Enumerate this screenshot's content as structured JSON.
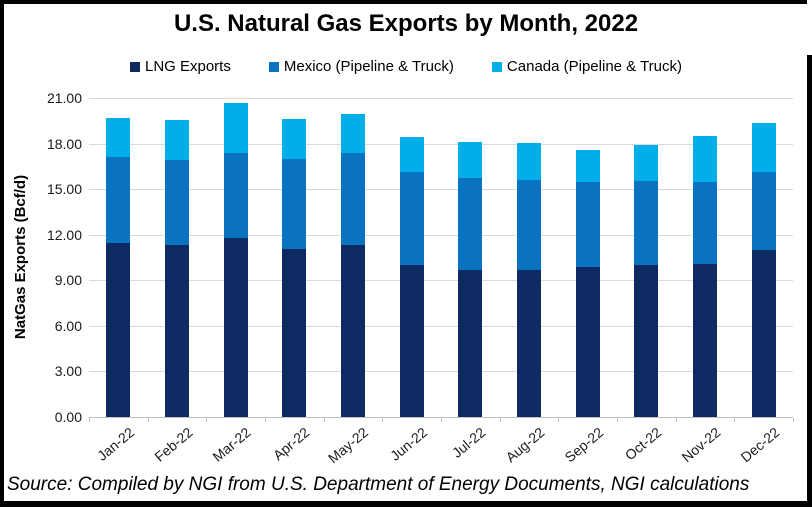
{
  "title": "U.S. Natural Gas Exports by Month, 2022",
  "source_note": "Source: Compiled by NGI from U.S. Department of Energy Documents, NGI calculations",
  "colors": {
    "lng_navy": "#0D2A63",
    "mexico_blue": "#0A73C0",
    "canada_lightblue": "#00AEE9",
    "gridline": "#d9d9d9",
    "axis": "#bfbfbf",
    "frame": "#000000"
  },
  "chart_data": {
    "type": "bar",
    "stacked": true,
    "title": "U.S. Natural Gas Exports by Month, 2022",
    "categories": [
      "Jan-22",
      "Feb-22",
      "Mar-22",
      "Apr-22",
      "May-22",
      "Jun-22",
      "Jul-22",
      "Aug-22",
      "Sep-22",
      "Oct-22",
      "Nov-22",
      "Dec-22"
    ],
    "series": [
      {
        "name": "LNG Exports",
        "color": "#0D2A63",
        "values": [
          11.45,
          11.3,
          11.8,
          11.05,
          11.3,
          10.0,
          9.65,
          9.7,
          9.85,
          10.0,
          10.1,
          11.0
        ]
      },
      {
        "name": "Mexico (Pipeline & Truck)",
        "color": "#0A73C0",
        "values": [
          5.65,
          5.65,
          5.55,
          5.95,
          6.1,
          6.1,
          6.1,
          5.9,
          5.65,
          5.55,
          5.4,
          5.15
        ]
      },
      {
        "name": "Canada (Pipeline & Truck)",
        "color": "#00AEE9",
        "values": [
          2.6,
          2.6,
          3.3,
          2.65,
          2.55,
          2.35,
          2.35,
          2.45,
          2.1,
          2.35,
          3.0,
          3.2
        ]
      }
    ],
    "totals": [
      19.7,
      19.55,
      20.65,
      19.65,
      19.95,
      18.45,
      18.1,
      18.05,
      17.6,
      17.9,
      18.5,
      19.35
    ],
    "xlabel": "",
    "ylabel": "NatGas Exports (Bcf/d)",
    "ylim": [
      0,
      21
    ],
    "ytick_step": 3,
    "ytick_labels": [
      "0.00",
      "3.00",
      "6.00",
      "9.00",
      "12.00",
      "15.00",
      "18.00",
      "21.00"
    ],
    "grid": true,
    "legend_position": "top"
  }
}
